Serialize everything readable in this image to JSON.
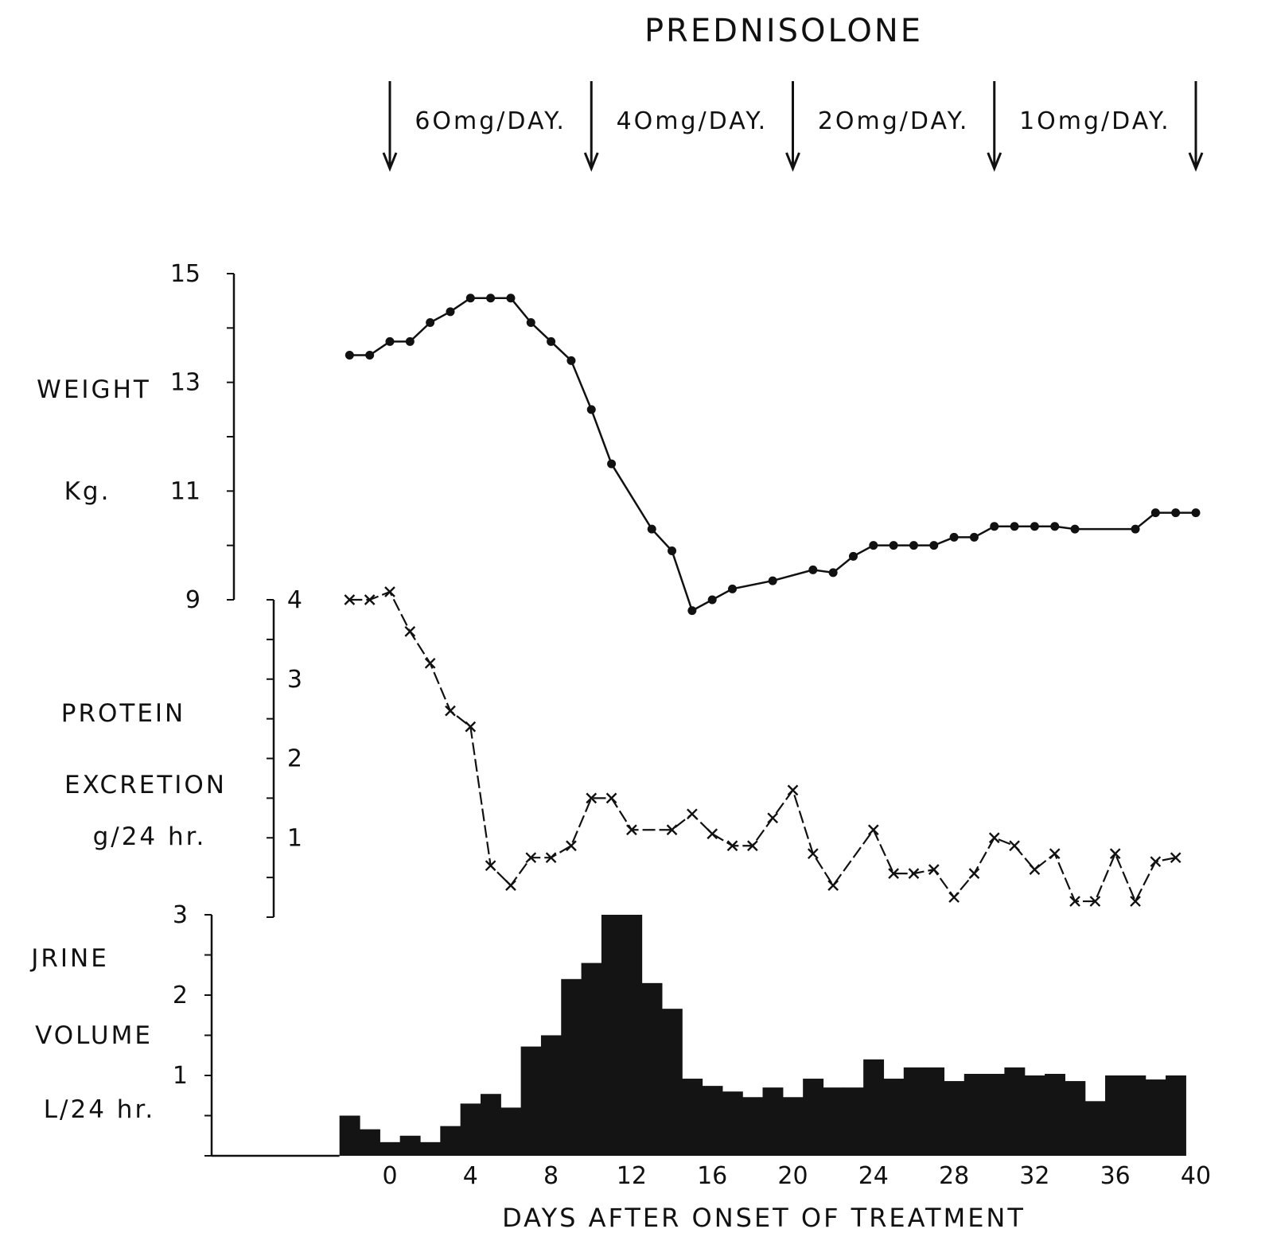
{
  "chart_data": {
    "type": "mixed",
    "title": "PREDNISOLONE",
    "xlabel": "DAYS AFTER ONSET OF TREATMENT",
    "xlim": [
      -5.5,
      40
    ],
    "xticks": [
      0,
      4,
      8,
      12,
      16,
      20,
      24,
      28,
      32,
      36,
      40
    ],
    "dosing": {
      "arrows_at_day": [
        0,
        10,
        20,
        30,
        40
      ],
      "labels": [
        "6Omg/DAY.",
        "4Omg/DAY.",
        "2Omg/DAY.",
        "1Omg/DAY."
      ]
    },
    "weight": {
      "type": "line",
      "label_lines": [
        "WEIGHT",
        "Kg."
      ],
      "ylim": [
        9,
        15
      ],
      "yticks": [
        9,
        11,
        13,
        15
      ],
      "points": [
        [
          -2,
          13.5
        ],
        [
          -1,
          13.5
        ],
        [
          0,
          13.75
        ],
        [
          1,
          13.75
        ],
        [
          2,
          14.1
        ],
        [
          3,
          14.3
        ],
        [
          4,
          14.55
        ],
        [
          5,
          14.55
        ],
        [
          6,
          14.55
        ],
        [
          7,
          14.1
        ],
        [
          8,
          13.75
        ],
        [
          9,
          13.4
        ],
        [
          10,
          12.5
        ],
        [
          11,
          11.5
        ],
        [
          13,
          10.3
        ],
        [
          14,
          9.9
        ],
        [
          15,
          8.8
        ],
        [
          16,
          9.0
        ],
        [
          17,
          9.2
        ],
        [
          19,
          9.35
        ],
        [
          21,
          9.55
        ],
        [
          22,
          9.5
        ],
        [
          23,
          9.8
        ],
        [
          24,
          10.0
        ],
        [
          25,
          10.0
        ],
        [
          26,
          10.0
        ],
        [
          27,
          10.0
        ],
        [
          28,
          10.15
        ],
        [
          29,
          10.15
        ],
        [
          30,
          10.35
        ],
        [
          31,
          10.35
        ],
        [
          32,
          10.35
        ],
        [
          33,
          10.35
        ],
        [
          34,
          10.3
        ],
        [
          37,
          10.3
        ],
        [
          38,
          10.6
        ],
        [
          39,
          10.6
        ],
        [
          40,
          10.6
        ]
      ]
    },
    "protein_excretion": {
      "type": "line",
      "label_lines": [
        "PROTEIN",
        "EXCRETION",
        "g/24 hr."
      ],
      "ylim": [
        0,
        4
      ],
      "yticks": [
        1,
        2,
        3,
        4
      ],
      "points": [
        [
          -2,
          4.0
        ],
        [
          -1,
          4.0
        ],
        [
          0,
          4.1
        ],
        [
          1,
          3.6
        ],
        [
          2,
          3.2
        ],
        [
          3,
          2.6
        ],
        [
          4,
          2.4
        ],
        [
          5,
          0.65
        ],
        [
          6,
          0.4
        ],
        [
          7,
          0.75
        ],
        [
          8,
          0.75
        ],
        [
          9,
          0.9
        ],
        [
          10,
          1.5
        ],
        [
          11,
          1.5
        ],
        [
          12,
          1.1
        ],
        [
          14,
          1.1
        ],
        [
          15,
          1.3
        ],
        [
          16,
          1.05
        ],
        [
          17,
          0.9
        ],
        [
          18,
          0.9
        ],
        [
          19,
          1.25
        ],
        [
          20,
          1.6
        ],
        [
          21,
          0.8
        ],
        [
          22,
          0.4
        ],
        [
          24,
          1.1
        ],
        [
          25,
          0.55
        ],
        [
          26,
          0.55
        ],
        [
          27,
          0.6
        ],
        [
          28,
          0.25
        ],
        [
          29,
          0.55
        ],
        [
          30,
          1.0
        ],
        [
          31,
          0.9
        ],
        [
          32,
          0.6
        ],
        [
          33,
          0.8
        ],
        [
          34,
          0.2
        ],
        [
          35,
          0.2
        ],
        [
          36,
          0.8
        ],
        [
          37,
          0.2
        ],
        [
          38,
          0.7
        ],
        [
          39,
          0.75
        ]
      ]
    },
    "urine_volume": {
      "type": "bar",
      "label_lines": [
        "JRINE",
        "VOLUME",
        "L/24 hr."
      ],
      "ylim": [
        0,
        3
      ],
      "yticks": [
        1,
        2,
        3
      ],
      "days_start": [
        -2.5,
        -1.5,
        -0.5,
        0.5,
        1.5,
        2.5,
        3.5,
        4.5,
        5.5,
        6.5,
        7.5,
        8.5,
        9.5,
        10.5,
        11.5,
        12.5,
        13.5,
        14.5,
        15.5,
        16.5,
        17.5,
        18.5,
        19.5,
        20.5,
        21.5,
        22.5,
        23.5,
        24.5,
        25.5,
        26.5,
        27.5,
        28.5,
        29.5,
        30.5,
        31.5,
        32.5,
        33.5,
        34.5,
        35.5,
        36.5,
        37.5,
        38.5
      ],
      "values": [
        0.5,
        0.33,
        0.17,
        0.25,
        0.17,
        0.37,
        0.65,
        0.77,
        0.6,
        1.36,
        1.5,
        2.2,
        2.4,
        3.0,
        3.0,
        2.15,
        1.83,
        0.96,
        0.87,
        0.8,
        0.73,
        0.85,
        0.73,
        0.96,
        0.85,
        0.85,
        1.2,
        0.96,
        1.1,
        1.1,
        0.93,
        1.02,
        1.02,
        1.1,
        1.0,
        1.02,
        0.93,
        0.68,
        1.0,
        1.0,
        0.95,
        1.0
      ],
      "last_bar_end": 39.5
    }
  }
}
